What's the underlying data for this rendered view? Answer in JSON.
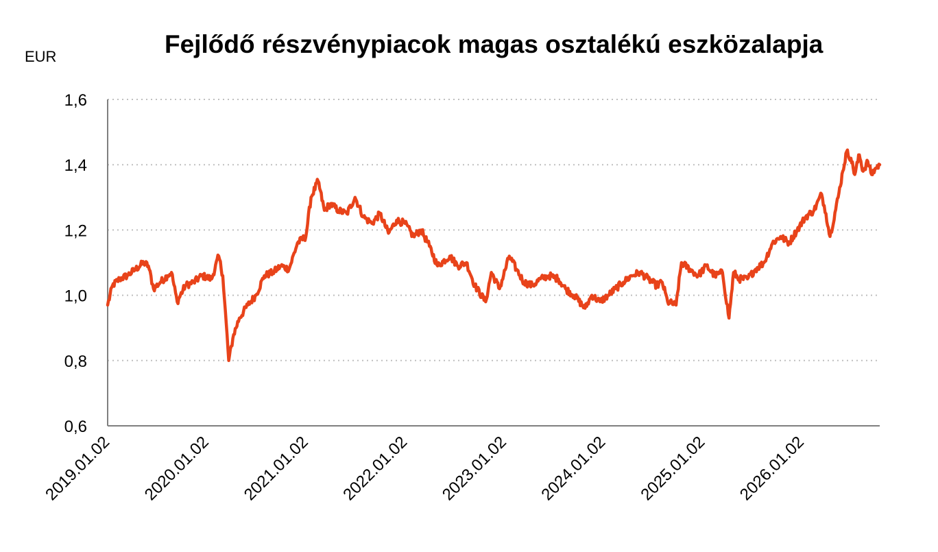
{
  "chart_data": {
    "type": "line",
    "title": "Fejlődő részvénypiacok magas osztalékú eszközalapja",
    "unit_label": "EUR",
    "xlabel": "",
    "ylabel": "",
    "ylim": [
      0.6,
      1.6
    ],
    "xlim": [
      "2019-01-02",
      "2026-10-15"
    ],
    "y_ticks": [
      {
        "value": 0.6,
        "label": "0,6"
      },
      {
        "value": 0.8,
        "label": "0,8"
      },
      {
        "value": 1.0,
        "label": "1,0"
      },
      {
        "value": 1.2,
        "label": "1,2"
      },
      {
        "value": 1.4,
        "label": "1,4"
      },
      {
        "value": 1.6,
        "label": "1,6"
      }
    ],
    "x_ticks": [
      {
        "date": "2019-01-02",
        "label": "2019.01.02"
      },
      {
        "date": "2020-01-02",
        "label": "2020.01.02"
      },
      {
        "date": "2021-01-02",
        "label": "2021.01.02"
      },
      {
        "date": "2022-01-02",
        "label": "2022.01.02"
      },
      {
        "date": "2023-01-02",
        "label": "2023.01.02"
      },
      {
        "date": "2024-01-02",
        "label": "2024.01.02"
      },
      {
        "date": "2025-01-02",
        "label": "2025.01.02"
      },
      {
        "date": "2026-01-02",
        "label": "2026.01.02"
      }
    ],
    "grid": {
      "horizontal": true,
      "style": "dotted"
    },
    "legend": "none",
    "colors": {
      "line": "#e8431a",
      "grid": "#bfbfbf",
      "axis": "#7f7f7f"
    },
    "series": [
      {
        "x": [
          "2019-01-02",
          "2019-01-20",
          "2019-02-15",
          "2019-03-15",
          "2019-04-15",
          "2019-05-15",
          "2019-06-01",
          "2019-06-20",
          "2019-07-15",
          "2019-08-10",
          "2019-08-25",
          "2019-09-15",
          "2019-10-15",
          "2019-11-15",
          "2019-12-15",
          "2020-01-20",
          "2020-02-15",
          "2020-03-01",
          "2020-03-23",
          "2020-04-10",
          "2020-05-01",
          "2020-06-01",
          "2020-07-01",
          "2020-08-01",
          "2020-09-01",
          "2020-10-01",
          "2020-10-31",
          "2020-12-01",
          "2021-01-01",
          "2021-01-20",
          "2021-02-15",
          "2021-03-10",
          "2021-04-01",
          "2021-05-01",
          "2021-06-01",
          "2021-07-01",
          "2021-08-01",
          "2021-09-01",
          "2021-10-01",
          "2021-11-01",
          "2021-12-01",
          "2022-01-01",
          "2022-02-01",
          "2022-03-01",
          "2022-04-01",
          "2022-05-01",
          "2022-06-15",
          "2022-07-15",
          "2022-08-15",
          "2022-09-15",
          "2022-10-25",
          "2022-11-15",
          "2022-12-15",
          "2023-01-20",
          "2023-02-15",
          "2023-03-15",
          "2023-04-15",
          "2023-05-15",
          "2023-06-15",
          "2023-07-20",
          "2023-08-15",
          "2023-09-15",
          "2023-10-26",
          "2023-11-20",
          "2023-12-20",
          "2024-01-20",
          "2024-02-15",
          "2024-03-15",
          "2024-04-15",
          "2024-05-15",
          "2024-06-15",
          "2024-07-15",
          "2024-08-05",
          "2024-08-25",
          "2024-09-25",
          "2024-10-15",
          "2024-11-15",
          "2024-12-15",
          "2025-01-15",
          "2025-02-15",
          "2025-03-15",
          "2025-04-08",
          "2025-04-25",
          "2025-05-15",
          "2025-06-15",
          "2025-07-15",
          "2025-08-15",
          "2025-09-15",
          "2025-10-15",
          "2025-11-15",
          "2025-12-15",
          "2026-01-15",
          "2026-02-15",
          "2026-03-15",
          "2026-03-31",
          "2026-04-15",
          "2026-05-15",
          "2026-06-01",
          "2026-06-15",
          "2026-07-01",
          "2026-07-15",
          "2026-08-01",
          "2026-08-15",
          "2026-09-01",
          "2026-09-15",
          "2026-10-01",
          "2026-10-15"
        ],
        "y": [
          0.97,
          1.03,
          1.05,
          1.06,
          1.08,
          1.1,
          1.09,
          1.02,
          1.04,
          1.06,
          1.07,
          0.98,
          1.03,
          1.04,
          1.06,
          1.05,
          1.12,
          1.06,
          0.8,
          0.88,
          0.93,
          0.97,
          1.0,
          1.06,
          1.07,
          1.09,
          1.08,
          1.16,
          1.18,
          1.3,
          1.35,
          1.26,
          1.28,
          1.26,
          1.25,
          1.3,
          1.24,
          1.22,
          1.25,
          1.19,
          1.23,
          1.22,
          1.18,
          1.2,
          1.15,
          1.09,
          1.12,
          1.09,
          1.1,
          1.03,
          0.98,
          1.07,
          1.02,
          1.12,
          1.08,
          1.04,
          1.03,
          1.05,
          1.06,
          1.05,
          1.02,
          1.0,
          0.96,
          1.0,
          0.98,
          1.0,
          1.02,
          1.04,
          1.06,
          1.07,
          1.05,
          1.03,
          1.04,
          0.98,
          0.97,
          1.1,
          1.08,
          1.06,
          1.09,
          1.06,
          1.07,
          0.93,
          1.07,
          1.05,
          1.05,
          1.08,
          1.1,
          1.16,
          1.18,
          1.16,
          1.2,
          1.24,
          1.26,
          1.31,
          1.25,
          1.18,
          1.3,
          1.38,
          1.44,
          1.42,
          1.37,
          1.43,
          1.38,
          1.41,
          1.37,
          1.39,
          1.4
        ]
      }
    ]
  }
}
